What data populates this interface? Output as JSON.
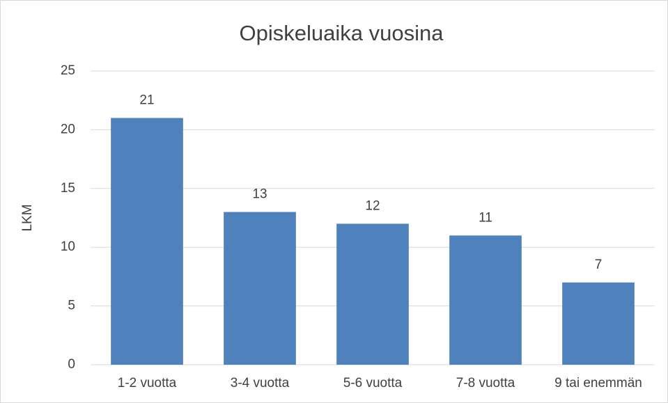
{
  "chart_data": {
    "type": "bar",
    "title": "Opiskeluaika vuosina",
    "y_label": "LKM",
    "categories": [
      "1-2 vuotta",
      "3-4 vuotta",
      "5-6 vuotta",
      "7-8 vuotta",
      "9 tai enemmän"
    ],
    "values": [
      21,
      13,
      12,
      11,
      7
    ],
    "color": "#4f81bd",
    "ylim": [
      0,
      25
    ],
    "yticks": [
      0,
      5,
      10,
      15,
      20,
      25
    ],
    "grid": true,
    "data_labels": true
  }
}
